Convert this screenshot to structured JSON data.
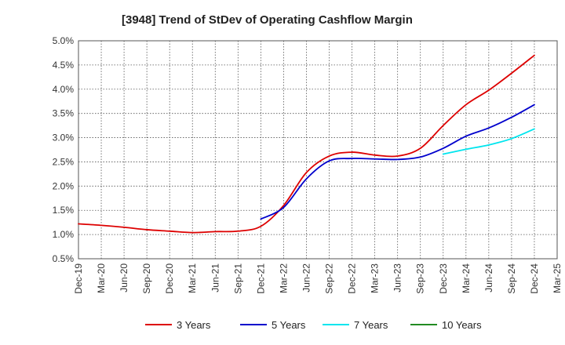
{
  "chart_data": {
    "type": "line",
    "title": "[3948]  Trend of StDev of Operating Cashflow Margin",
    "xlabel": "",
    "ylabel": "",
    "ylim": [
      0.5,
      5.0
    ],
    "y_ticks": [
      0.5,
      1.0,
      1.5,
      2.0,
      2.5,
      3.0,
      3.5,
      4.0,
      4.5,
      5.0
    ],
    "y_tick_labels": [
      "0.5%",
      "1.0%",
      "1.5%",
      "2.0%",
      "2.5%",
      "3.0%",
      "3.5%",
      "4.0%",
      "4.5%",
      "5.0%"
    ],
    "x_tick_labels": [
      "Dec-19",
      "Mar-20",
      "Jun-20",
      "Sep-20",
      "Dec-20",
      "Mar-21",
      "Jun-21",
      "Sep-21",
      "Dec-21",
      "Mar-22",
      "Jun-22",
      "Sep-22",
      "Dec-22",
      "Mar-23",
      "Jun-23",
      "Sep-23",
      "Dec-23",
      "Mar-24",
      "Jun-24",
      "Sep-24",
      "Dec-24",
      "Mar-25"
    ],
    "grid": true,
    "legend_position": "bottom",
    "series": [
      {
        "name": "3 Years",
        "color": "#dd0000",
        "start_index": 0,
        "values": [
          1.22,
          1.19,
          1.15,
          1.1,
          1.07,
          1.04,
          1.06,
          1.07,
          1.17,
          1.6,
          2.28,
          2.62,
          2.7,
          2.64,
          2.62,
          2.78,
          3.25,
          3.68,
          3.98,
          4.33,
          4.7
        ]
      },
      {
        "name": "5 Years",
        "color": "#0000cc",
        "start_index": 8,
        "values": [
          1.32,
          1.56,
          2.15,
          2.52,
          2.57,
          2.56,
          2.55,
          2.6,
          2.78,
          3.03,
          3.2,
          3.42,
          3.68
        ]
      },
      {
        "name": "7 Years",
        "color": "#00e5ee",
        "start_index": 16,
        "values": [
          2.66,
          2.76,
          2.85,
          2.98,
          3.18
        ]
      },
      {
        "name": "10 Years",
        "color": "#228B22",
        "start_index": 21,
        "values": []
      }
    ]
  }
}
